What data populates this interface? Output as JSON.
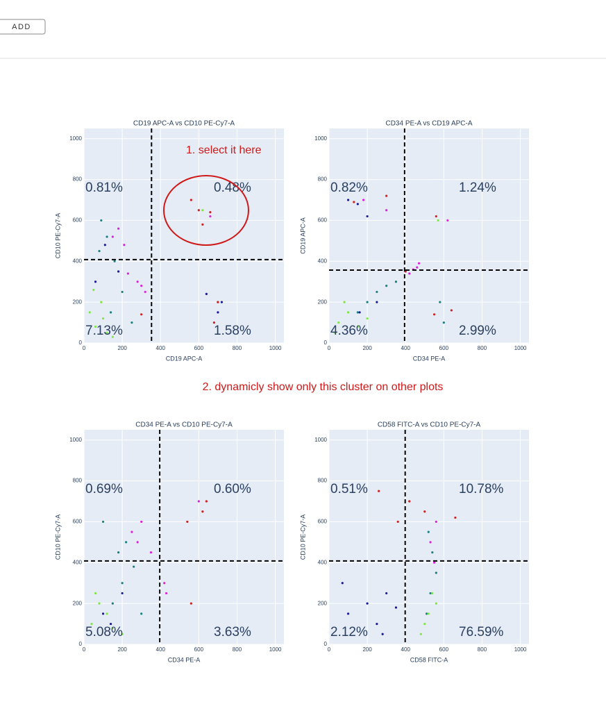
{
  "button": "ADD",
  "annotations": [
    "1. select it here",
    "2. dynamicly show only this cluster on other plots"
  ],
  "chart_data": [
    {
      "type": "scatter",
      "title": "CD19 APC-A vs CD10 PE-Cy7-A",
      "x_label": "CD19 APC-A",
      "y_label": "CD10 PE-Cy7-A",
      "xlim": [
        0,
        1045
      ],
      "ylim": [
        0,
        1050
      ],
      "xticks": [
        0,
        200,
        400,
        600,
        800,
        1000
      ],
      "yticks": [
        0,
        200,
        400,
        600,
        800,
        1000
      ],
      "gates": {
        "x": 353,
        "y": 408
      },
      "quadrants": [
        "0.81%",
        "0.48%",
        "7.13%",
        "1.58%"
      ],
      "series": [
        {
          "color": "#e020e0",
          "x": [
            150,
            180,
            210,
            230,
            300,
            320,
            280,
            660
          ],
          "y": [
            520,
            560,
            480,
            340,
            280,
            250,
            300,
            620
          ]
        },
        {
          "color": "#1a8080",
          "x": [
            80,
            120,
            160,
            200,
            140,
            90,
            700,
            250
          ],
          "y": [
            450,
            520,
            400,
            250,
            150,
            600,
            200,
            100
          ]
        },
        {
          "color": "#7ee840",
          "x": [
            30,
            60,
            90,
            120,
            50,
            100,
            150,
            620
          ],
          "y": [
            150,
            80,
            200,
            50,
            260,
            120,
            30,
            650
          ]
        },
        {
          "color": "#1a1a9a",
          "x": [
            60,
            640,
            700,
            720,
            110,
            180
          ],
          "y": [
            300,
            240,
            150,
            200,
            480,
            350
          ]
        },
        {
          "color": "#d02020",
          "x": [
            560,
            600,
            620,
            660,
            700,
            300,
            680
          ],
          "y": [
            700,
            650,
            580,
            640,
            200,
            140,
            100
          ]
        }
      ]
    },
    {
      "type": "scatter",
      "title": "CD34 PE-A vs CD19 APC-A",
      "x_label": "CD34 PE-A",
      "y_label": "CD19 APC-A",
      "xlim": [
        0,
        1045
      ],
      "ylim": [
        0,
        1050
      ],
      "xticks": [
        0,
        200,
        400,
        600,
        800,
        1000
      ],
      "yticks": [
        0,
        200,
        400,
        600,
        800,
        1000
      ],
      "gates": {
        "x": 395,
        "y": 357
      },
      "quadrants": [
        "0.82%",
        "1.24%",
        "4.36%",
        "2.99%"
      ],
      "series": [
        {
          "color": "#e020e0",
          "x": [
            460,
            470,
            440,
            420,
            180,
            300,
            620
          ],
          "y": [
            370,
            390,
            360,
            340,
            700,
            650,
            600
          ]
        },
        {
          "color": "#1a8080",
          "x": [
            200,
            250,
            300,
            350,
            150,
            580,
            600
          ],
          "y": [
            200,
            250,
            280,
            300,
            150,
            200,
            100
          ]
        },
        {
          "color": "#7ee840",
          "x": [
            50,
            100,
            150,
            80,
            30,
            200,
            570
          ],
          "y": [
            100,
            150,
            80,
            200,
            50,
            120,
            600
          ]
        },
        {
          "color": "#1a1a9a",
          "x": [
            100,
            150,
            200,
            160,
            250
          ],
          "y": [
            700,
            680,
            620,
            150,
            200
          ]
        },
        {
          "color": "#d02020",
          "x": [
            130,
            300,
            550,
            640,
            560,
            400
          ],
          "y": [
            690,
            720,
            140,
            160,
            620,
            350
          ]
        }
      ]
    },
    {
      "type": "scatter",
      "title": "CD34 PE-A vs CD10 PE-Cy7-A",
      "x_label": "CD34 PE-A",
      "y_label": "CD10 PE-Cy7-A",
      "xlim": [
        0,
        1045
      ],
      "ylim": [
        0,
        1050
      ],
      "xticks": [
        0,
        200,
        400,
        600,
        800,
        1000
      ],
      "yticks": [
        0,
        200,
        400,
        600,
        800,
        1000
      ],
      "gates": {
        "x": 396,
        "y": 408
      },
      "quadrants": [
        "0.69%",
        "0.60%",
        "5.08%",
        "3.63%"
      ],
      "series": [
        {
          "color": "#e020e0",
          "x": [
            250,
            280,
            300,
            420,
            430,
            350,
            600
          ],
          "y": [
            550,
            500,
            600,
            300,
            250,
            450,
            700
          ]
        },
        {
          "color": "#1a8080",
          "x": [
            180,
            220,
            260,
            200,
            150,
            300,
            100
          ],
          "y": [
            450,
            500,
            380,
            300,
            200,
            150,
            600
          ]
        },
        {
          "color": "#7ee840",
          "x": [
            40,
            80,
            120,
            60,
            200,
            150
          ],
          "y": [
            100,
            200,
            150,
            250,
            50,
            80
          ]
        },
        {
          "color": "#1a1a9a",
          "x": [
            100,
            140,
            200
          ],
          "y": [
            150,
            100,
            250
          ]
        },
        {
          "color": "#d02020",
          "x": [
            540,
            620,
            640,
            560
          ],
          "y": [
            600,
            650,
            700,
            200
          ]
        }
      ]
    },
    {
      "type": "scatter",
      "title": "CD58 FITC-A vs CD10 PE-Cy7-A",
      "x_label": "CD58 FITC-A",
      "y_label": "CD10 PE-Cy7-A",
      "xlim": [
        0,
        1045
      ],
      "ylim": [
        0,
        1050
      ],
      "xticks": [
        0,
        200,
        400,
        600,
        800,
        1000
      ],
      "yticks": [
        0,
        200,
        400,
        600,
        800,
        1000
      ],
      "gates": {
        "x": 398,
        "y": 408
      },
      "quadrants": [
        "0.51%",
        "10.78%",
        "2.12%",
        "76.59%"
      ],
      "series": [
        {
          "color": "#e020e0",
          "x": [
            530,
            560,
            550
          ],
          "y": [
            500,
            600,
            400
          ]
        },
        {
          "color": "#1a8080",
          "x": [
            520,
            540,
            560,
            530,
            510
          ],
          "y": [
            550,
            450,
            350,
            250,
            150
          ]
        },
        {
          "color": "#7ee840",
          "x": [
            480,
            500,
            520,
            560,
            540
          ],
          "y": [
            50,
            100,
            150,
            200,
            250
          ]
        },
        {
          "color": "#1a1a9a",
          "x": [
            100,
            200,
            250,
            300,
            350,
            280,
            70
          ],
          "y": [
            150,
            200,
            100,
            250,
            180,
            50,
            300
          ]
        },
        {
          "color": "#d02020",
          "x": [
            360,
            420,
            500,
            660,
            260
          ],
          "y": [
            600,
            700,
            650,
            620,
            750
          ]
        }
      ]
    }
  ]
}
